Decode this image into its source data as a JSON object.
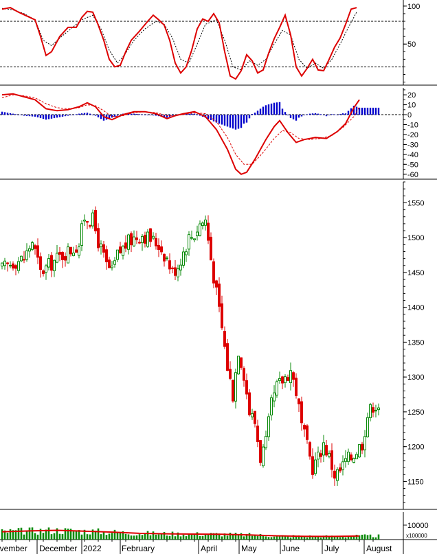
{
  "chart_data": {
    "type": "candlestick",
    "x_labels": [
      "ovember",
      "December",
      "2022",
      "February",
      "April",
      "May",
      "June",
      "July",
      "August"
    ],
    "colors": {
      "up": "#0a8a0a",
      "down": "#dd0000",
      "indicator_line": "#dd0000",
      "signal_line": "#dd0000",
      "histogram": "#0000cc",
      "volume_bar": "#0a8a0a",
      "volume_ma": "#dd0000",
      "axis": "#000000"
    },
    "panels": [
      {
        "name": "stochastic",
        "yticks": [
          100,
          50
        ],
        "ylim": [
          -4,
          108
        ],
        "reference_lines": [
          80,
          20
        ],
        "k": [
          [
            0,
            96
          ],
          [
            3,
            98
          ],
          [
            6,
            92
          ],
          [
            9,
            87
          ],
          [
            12,
            82
          ],
          [
            14,
            60
          ],
          [
            16,
            35
          ],
          [
            18,
            40
          ],
          [
            21,
            60
          ],
          [
            24,
            72
          ],
          [
            27,
            72
          ],
          [
            29,
            85
          ],
          [
            31,
            93
          ],
          [
            33,
            92
          ],
          [
            35,
            75
          ],
          [
            37,
            55
          ],
          [
            39,
            30
          ],
          [
            41,
            20
          ],
          [
            43,
            22
          ],
          [
            45,
            40
          ],
          [
            47,
            55
          ],
          [
            50,
            67
          ],
          [
            53,
            80
          ],
          [
            55,
            88
          ],
          [
            57,
            82
          ],
          [
            59,
            75
          ],
          [
            61,
            55
          ],
          [
            63,
            25
          ],
          [
            65,
            12
          ],
          [
            67,
            20
          ],
          [
            69,
            42
          ],
          [
            71,
            70
          ],
          [
            73,
            83
          ],
          [
            75,
            80
          ],
          [
            77,
            90
          ],
          [
            79,
            78
          ],
          [
            81,
            40
          ],
          [
            83,
            8
          ],
          [
            85,
            4
          ],
          [
            87,
            15
          ],
          [
            89,
            36
          ],
          [
            91,
            28
          ],
          [
            93,
            12
          ],
          [
            95,
            16
          ],
          [
            97,
            38
          ],
          [
            99,
            57
          ],
          [
            101,
            72
          ],
          [
            103,
            88
          ],
          [
            105,
            62
          ],
          [
            107,
            20
          ],
          [
            109,
            8
          ],
          [
            111,
            18
          ],
          [
            113,
            30
          ],
          [
            115,
            16
          ],
          [
            117,
            15
          ],
          [
            119,
            30
          ],
          [
            121,
            46
          ],
          [
            123,
            58
          ],
          [
            125,
            76
          ],
          [
            127,
            96
          ],
          [
            129,
            98
          ]
        ],
        "d": [
          [
            0,
            97
          ],
          [
            4,
            95
          ],
          [
            8,
            90
          ],
          [
            12,
            82
          ],
          [
            15,
            55
          ],
          [
            18,
            48
          ],
          [
            21,
            58
          ],
          [
            25,
            70
          ],
          [
            29,
            82
          ],
          [
            33,
            88
          ],
          [
            36,
            70
          ],
          [
            39,
            42
          ],
          [
            42,
            25
          ],
          [
            45,
            38
          ],
          [
            48,
            55
          ],
          [
            52,
            70
          ],
          [
            56,
            80
          ],
          [
            59,
            76
          ],
          [
            62,
            58
          ],
          [
            65,
            30
          ],
          [
            68,
            25
          ],
          [
            71,
            50
          ],
          [
            74,
            76
          ],
          [
            78,
            82
          ],
          [
            81,
            55
          ],
          [
            84,
            20
          ],
          [
            87,
            16
          ],
          [
            90,
            28
          ],
          [
            93,
            22
          ],
          [
            96,
            30
          ],
          [
            99,
            50
          ],
          [
            102,
            68
          ],
          [
            105,
            62
          ],
          [
            108,
            30
          ],
          [
            111,
            18
          ],
          [
            114,
            25
          ],
          [
            117,
            18
          ],
          [
            120,
            30
          ],
          [
            123,
            50
          ],
          [
            126,
            72
          ],
          [
            129,
            92
          ]
        ]
      },
      {
        "name": "macd",
        "yticks": [
          20,
          10,
          0,
          -10,
          -20,
          -30,
          -40,
          -50,
          -60
        ],
        "ylim": [
          -65,
          27
        ],
        "macd": [
          [
            0,
            20
          ],
          [
            4,
            21
          ],
          [
            8,
            18
          ],
          [
            12,
            15
          ],
          [
            16,
            6
          ],
          [
            20,
            4
          ],
          [
            24,
            5
          ],
          [
            28,
            8
          ],
          [
            31,
            12
          ],
          [
            34,
            8
          ],
          [
            37,
            -2
          ],
          [
            40,
            -5
          ],
          [
            44,
            0
          ],
          [
            48,
            3
          ],
          [
            52,
            3
          ],
          [
            56,
            1
          ],
          [
            60,
            -4
          ],
          [
            63,
            -1
          ],
          [
            66,
            1
          ],
          [
            70,
            3
          ],
          [
            74,
            -2
          ],
          [
            78,
            -15
          ],
          [
            82,
            -35
          ],
          [
            85,
            -55
          ],
          [
            87,
            -60
          ],
          [
            89,
            -58
          ],
          [
            92,
            -45
          ],
          [
            96,
            -25
          ],
          [
            99,
            -12
          ],
          [
            101,
            -6
          ],
          [
            104,
            -18
          ],
          [
            107,
            -28
          ],
          [
            110,
            -25
          ],
          [
            114,
            -23
          ],
          [
            118,
            -24
          ],
          [
            122,
            -17
          ],
          [
            125,
            -9
          ],
          [
            128,
            7
          ],
          [
            130,
            15
          ]
        ],
        "signal": [
          [
            0,
            17
          ],
          [
            4,
            20
          ],
          [
            8,
            19
          ],
          [
            12,
            17
          ],
          [
            16,
            11
          ],
          [
            20,
            7
          ],
          [
            24,
            6
          ],
          [
            28,
            7
          ],
          [
            31,
            10
          ],
          [
            34,
            9
          ],
          [
            37,
            4
          ],
          [
            40,
            -2
          ],
          [
            44,
            -1
          ],
          [
            48,
            2
          ],
          [
            52,
            3
          ],
          [
            56,
            2
          ],
          [
            60,
            -1
          ],
          [
            63,
            -1
          ],
          [
            66,
            0
          ],
          [
            70,
            2
          ],
          [
            74,
            1
          ],
          [
            78,
            -7
          ],
          [
            82,
            -23
          ],
          [
            85,
            -40
          ],
          [
            88,
            -50
          ],
          [
            91,
            -50
          ],
          [
            95,
            -38
          ],
          [
            99,
            -24
          ],
          [
            102,
            -16
          ],
          [
            105,
            -18
          ],
          [
            108,
            -24
          ],
          [
            112,
            -25
          ],
          [
            116,
            -24
          ],
          [
            120,
            -21
          ],
          [
            124,
            -13
          ],
          [
            128,
            -2
          ],
          [
            130,
            8
          ]
        ]
      },
      {
        "name": "price",
        "yticks": [
          1550,
          1500,
          1450,
          1400,
          1350,
          1300,
          1250,
          1200,
          1150
        ],
        "ylim": [
          1110,
          1580
        ],
        "anchors": [
          [
            0,
            1455
          ],
          [
            4,
            1465
          ],
          [
            8,
            1470
          ],
          [
            11,
            1495
          ],
          [
            14,
            1450
          ],
          [
            17,
            1460
          ],
          [
            20,
            1470
          ],
          [
            23,
            1478
          ],
          [
            26,
            1485
          ],
          [
            28,
            1490
          ],
          [
            30,
            1530
          ],
          [
            33,
            1525
          ],
          [
            35,
            1495
          ],
          [
            38,
            1460
          ],
          [
            40,
            1450
          ],
          [
            42,
            1475
          ],
          [
            45,
            1490
          ],
          [
            48,
            1500
          ],
          [
            51,
            1505
          ],
          [
            54,
            1498
          ],
          [
            57,
            1490
          ],
          [
            60,
            1470
          ],
          [
            62,
            1450
          ],
          [
            64,
            1460
          ],
          [
            66,
            1480
          ],
          [
            68,
            1500
          ],
          [
            70,
            1505
          ],
          [
            72,
            1520
          ],
          [
            74,
            1525
          ],
          [
            76,
            1470
          ],
          [
            78,
            1420
          ],
          [
            80,
            1370
          ],
          [
            82,
            1315
          ],
          [
            84,
            1275
          ],
          [
            86,
            1340
          ],
          [
            88,
            1305
          ],
          [
            90,
            1250
          ],
          [
            92,
            1235
          ],
          [
            94,
            1185
          ],
          [
            96,
            1205
          ],
          [
            98,
            1260
          ],
          [
            100,
            1285
          ],
          [
            102,
            1295
          ],
          [
            105,
            1310
          ],
          [
            107,
            1280
          ],
          [
            109,
            1230
          ],
          [
            111,
            1200
          ],
          [
            113,
            1170
          ],
          [
            115,
            1185
          ],
          [
            117,
            1205
          ],
          [
            119,
            1185
          ],
          [
            121,
            1160
          ],
          [
            123,
            1165
          ],
          [
            125,
            1180
          ],
          [
            127,
            1185
          ],
          [
            129,
            1195
          ],
          [
            131,
            1205
          ],
          [
            133,
            1245
          ],
          [
            135,
            1260
          ]
        ]
      },
      {
        "name": "volume",
        "unit_label": "x100000",
        "yticks": [
          10000
        ],
        "ylim": [
          0,
          19000
        ],
        "volume_ma": [
          [
            0,
            5400
          ],
          [
            10,
            6000
          ],
          [
            20,
            6400
          ],
          [
            30,
            5800
          ],
          [
            40,
            5200
          ],
          [
            50,
            4300
          ],
          [
            60,
            4000
          ],
          [
            70,
            3800
          ],
          [
            80,
            3700
          ],
          [
            90,
            3200
          ],
          [
            100,
            2600
          ],
          [
            110,
            2300
          ],
          [
            120,
            2200
          ],
          [
            130,
            2500
          ]
        ]
      }
    ]
  }
}
